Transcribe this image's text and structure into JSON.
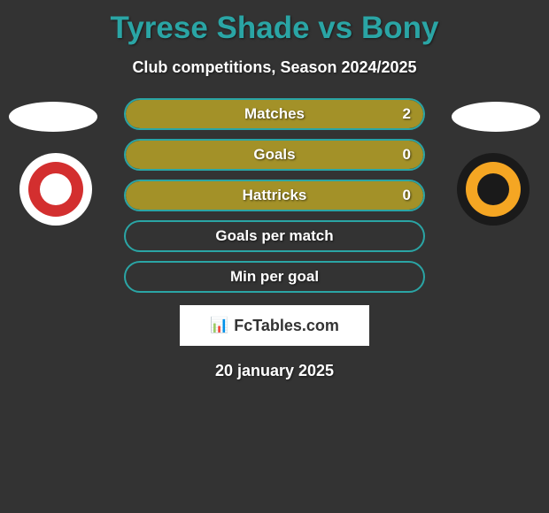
{
  "title": "Tyrese Shade vs Bony",
  "subtitle": "Club competitions, Season 2024/2025",
  "stats": [
    {
      "label": "Matches",
      "left_pct": 0,
      "right_pct": 100,
      "right_value": "2",
      "show_right_value": true
    },
    {
      "label": "Goals",
      "left_pct": 0,
      "right_pct": 100,
      "right_value": "0",
      "show_right_value": true
    },
    {
      "label": "Hattricks",
      "left_pct": 0,
      "right_pct": 100,
      "right_value": "0",
      "show_right_value": true
    },
    {
      "label": "Goals per match",
      "left_pct": 0,
      "right_pct": 0,
      "right_value": "",
      "show_right_value": false
    },
    {
      "label": "Min per goal",
      "left_pct": 0,
      "right_pct": 0,
      "right_value": "",
      "show_right_value": false
    }
  ],
  "logo_text": "FcTables.com",
  "date": "20 january 2025",
  "colors": {
    "background": "#333333",
    "title": "#2aa5a5",
    "border": "#2aa5a5",
    "fill": "#a39128",
    "text": "#ffffff"
  }
}
